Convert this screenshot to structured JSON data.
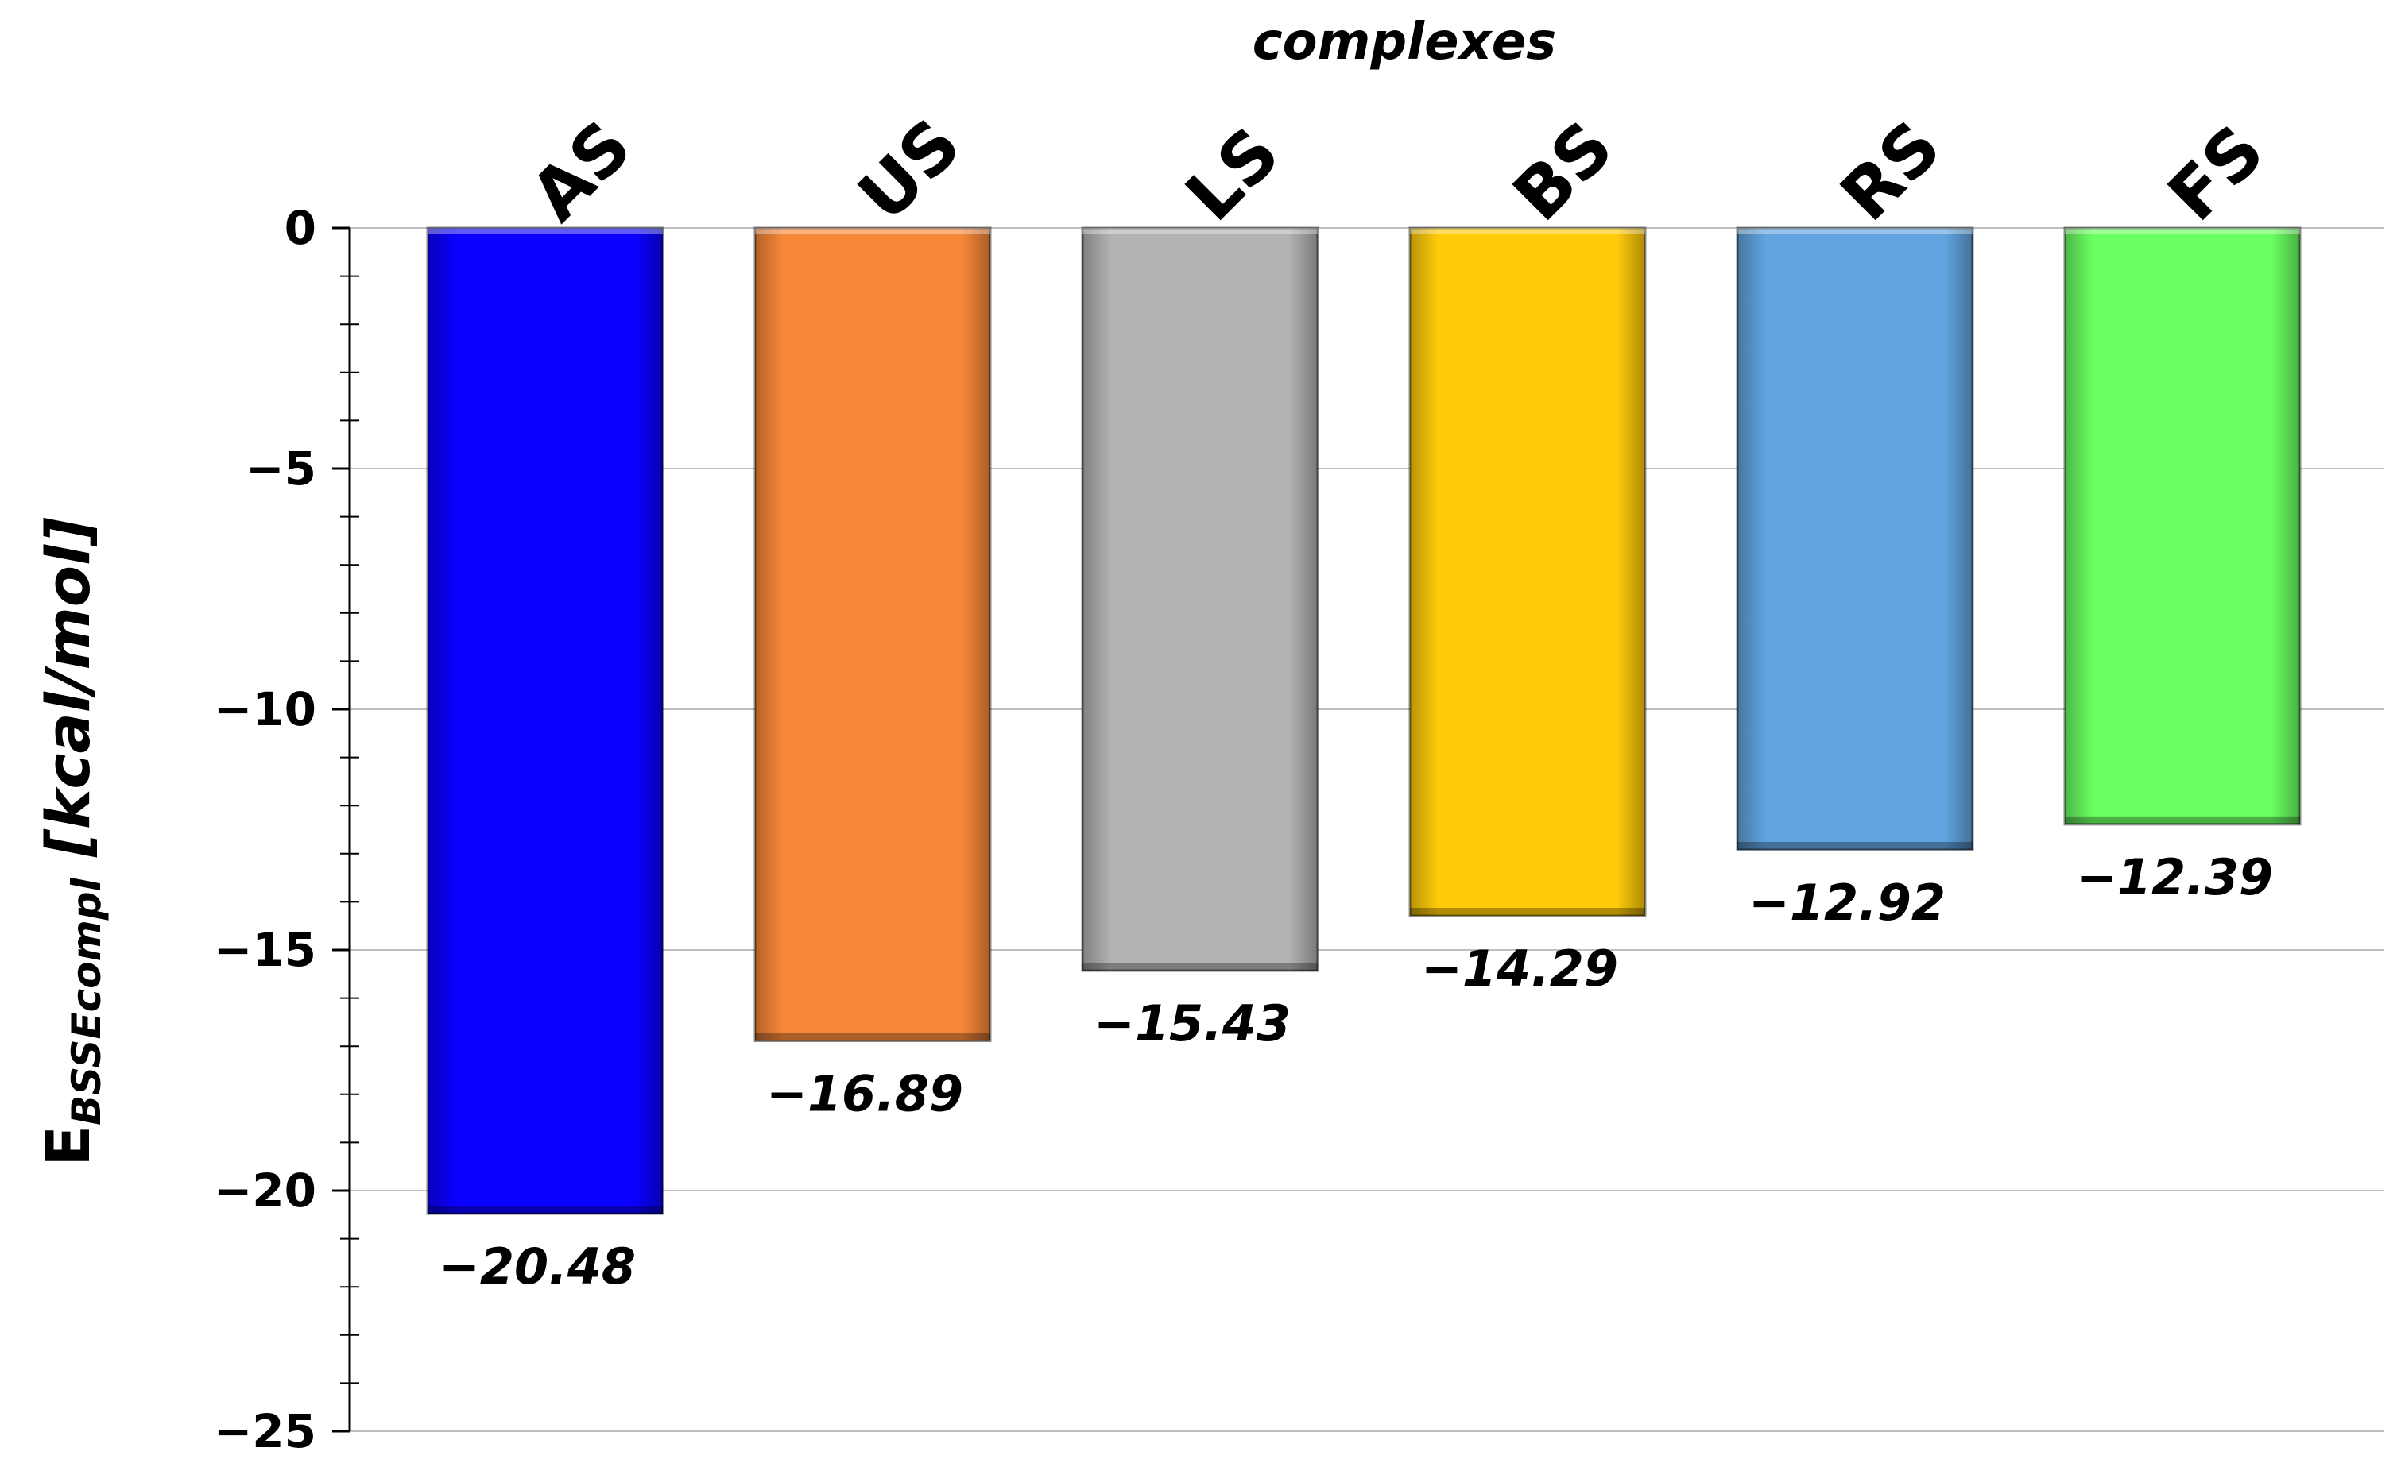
{
  "chart_data": {
    "type": "bar",
    "title": "",
    "xlabel": "complexes",
    "ylabel": {
      "main": "E",
      "subscript": "BSSEcompl",
      "unit": " [kcal/mol]"
    },
    "categories": [
      "AS",
      "US",
      "LS",
      "BS",
      "RS",
      "FS"
    ],
    "values": [
      -20.48,
      -16.89,
      -15.43,
      -14.29,
      -12.92,
      -12.39
    ],
    "data_labels": [
      "−20.48",
      "−16.89",
      "−15.43",
      "−14.29",
      "−12.92",
      "−12.39"
    ],
    "colors": [
      "#0a00ff",
      "#f7883a",
      "#b2b2b2",
      "#ffcb0a",
      "#62a4df",
      "#6aff62"
    ],
    "ylim": [
      -25,
      0
    ],
    "yticks": [
      0,
      -5,
      -10,
      -15,
      -20,
      -25
    ],
    "ytick_labels": [
      "0",
      "−5",
      "−10",
      "−15",
      "−20",
      "−25"
    ],
    "grid": true,
    "legend": "none"
  }
}
